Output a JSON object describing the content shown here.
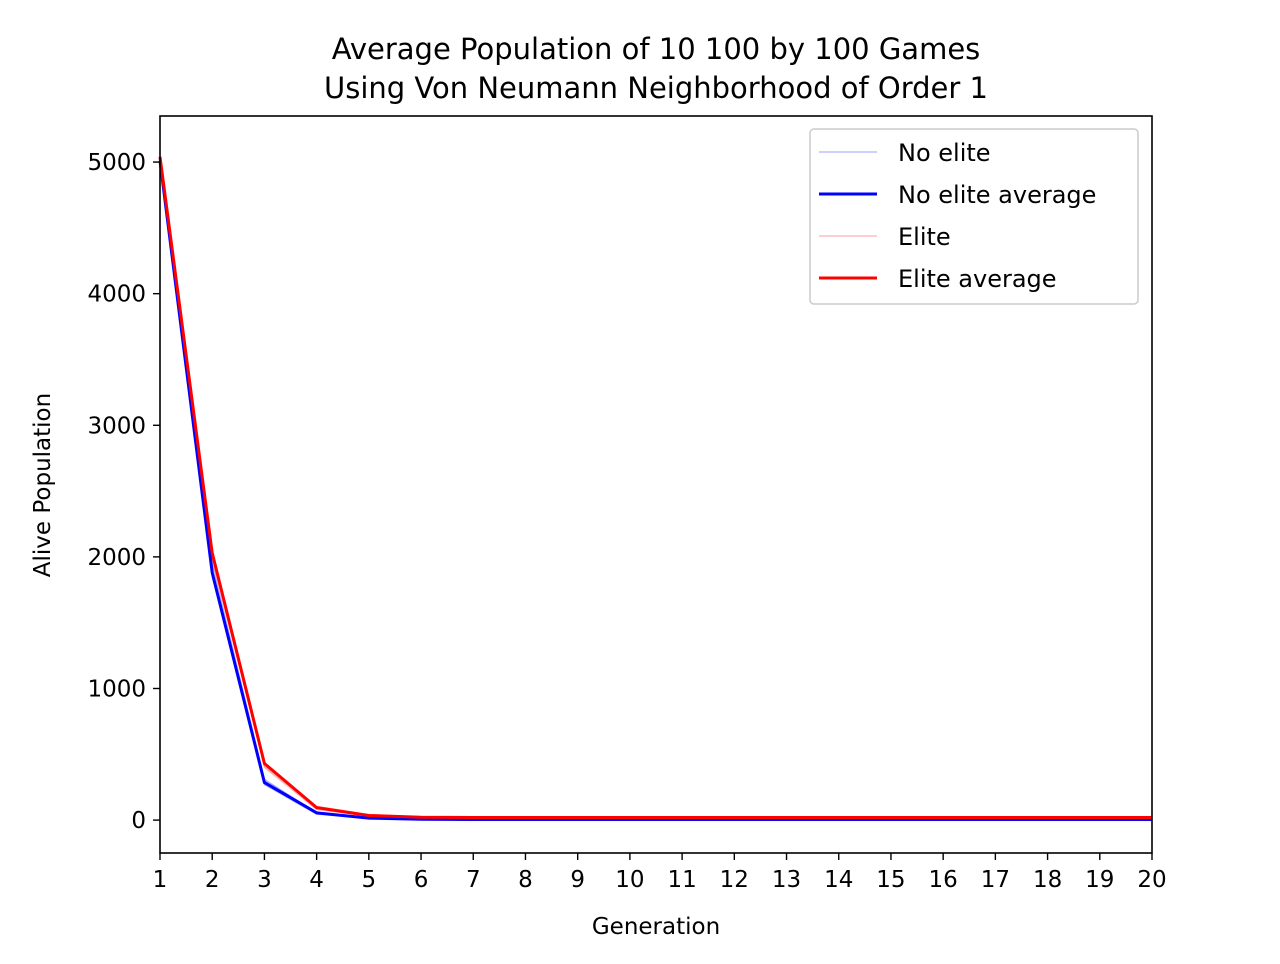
{
  "chart_data": {
    "type": "line",
    "title_lines": [
      "Average Population of 10 100 by 100 Games",
      "Using Von Neumann Neighborhood of Order 1"
    ],
    "xlabel": "Generation",
    "ylabel": "Alive Population",
    "xlim": [
      1,
      20
    ],
    "ylim": [
      -250,
      5350
    ],
    "xticks": [
      1,
      2,
      3,
      4,
      5,
      6,
      7,
      8,
      9,
      10,
      11,
      12,
      13,
      14,
      15,
      16,
      17,
      18,
      19,
      20
    ],
    "yticks": [
      0,
      1000,
      2000,
      3000,
      4000,
      5000
    ],
    "grid": false,
    "legend_position": "upper-right",
    "legend": [
      {
        "label": "No elite",
        "color": "#0000ff",
        "opacity": 0.3,
        "width": 1.2
      },
      {
        "label": "No elite average",
        "color": "#0000ff",
        "opacity": 1.0,
        "width": 3
      },
      {
        "label": "Elite",
        "color": "#ff0000",
        "opacity": 0.3,
        "width": 1.2
      },
      {
        "label": "Elite average",
        "color": "#ff0000",
        "opacity": 1.0,
        "width": 3
      }
    ],
    "x": [
      1,
      2,
      3,
      4,
      5,
      6,
      7,
      8,
      9,
      10,
      11,
      12,
      13,
      14,
      15,
      16,
      17,
      18,
      19,
      20
    ],
    "series": [
      {
        "name": "No elite",
        "style": "thin",
        "color": "#0000ff",
        "values": [
          5030,
          1850,
          270,
          45,
          12,
          5,
          4,
          4,
          4,
          4,
          4,
          4,
          4,
          4,
          4,
          4,
          4,
          4,
          4,
          4
        ]
      },
      {
        "name": "No elite",
        "style": "thin",
        "color": "#0000ff",
        "values": [
          5010,
          1900,
          300,
          60,
          18,
          7,
          5,
          5,
          5,
          5,
          5,
          5,
          5,
          5,
          5,
          5,
          5,
          5,
          5,
          5
        ]
      },
      {
        "name": "No elite",
        "style": "thin",
        "color": "#0000ff",
        "values": [
          4990,
          1950,
          310,
          55,
          15,
          6,
          5,
          5,
          5,
          5,
          5,
          5,
          5,
          5,
          5,
          5,
          5,
          5,
          5,
          5
        ]
      },
      {
        "name": "No elite average",
        "style": "thick",
        "color": "#0000ff",
        "values": [
          5010,
          1880,
          285,
          55,
          15,
          6,
          5,
          5,
          5,
          5,
          5,
          5,
          5,
          5,
          5,
          5,
          5,
          5,
          5,
          5
        ]
      },
      {
        "name": "Elite",
        "style": "thin",
        "color": "#ff0000",
        "values": [
          5050,
          2000,
          400,
          80,
          30,
          20,
          18,
          18,
          18,
          18,
          18,
          18,
          18,
          18,
          18,
          18,
          18,
          18,
          18,
          18
        ]
      },
      {
        "name": "Elite",
        "style": "thin",
        "color": "#ff0000",
        "values": [
          5020,
          2060,
          440,
          105,
          42,
          24,
          20,
          20,
          20,
          20,
          20,
          20,
          20,
          20,
          20,
          20,
          20,
          20,
          20,
          20
        ]
      },
      {
        "name": "Elite",
        "style": "thin",
        "color": "#ff0000",
        "values": [
          5000,
          1980,
          410,
          95,
          38,
          22,
          19,
          19,
          19,
          19,
          19,
          19,
          19,
          19,
          19,
          19,
          19,
          19,
          19,
          19
        ]
      },
      {
        "name": "Elite average",
        "style": "thick",
        "color": "#ff0000",
        "values": [
          5040,
          2030,
          430,
          95,
          35,
          22,
          20,
          20,
          20,
          20,
          20,
          20,
          20,
          20,
          20,
          20,
          20,
          20,
          20,
          20
        ]
      }
    ]
  }
}
